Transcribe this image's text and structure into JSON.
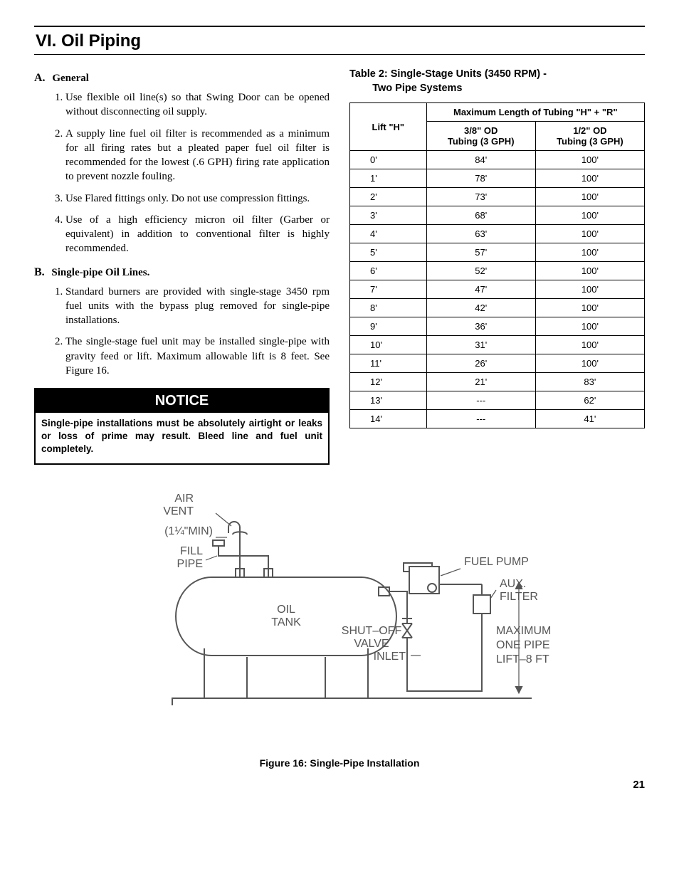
{
  "section_title": "VI.  Oil Piping",
  "left": {
    "A": {
      "label": "A.",
      "title": "General",
      "items": [
        "Use flexible oil line(s) so that Swing Door can be opened without disconnecting oil supply.",
        "A supply line fuel oil filter is recommended as a minimum for all firing rates but a pleated paper fuel oil filter is recommended for the lowest (.6 GPH) firing rate application to prevent nozzle fouling.",
        "Use Flared fittings only.  Do not use compression fittings.",
        "Use of a high efficiency micron oil filter (Garber or equivalent) in addition to conventional filter is highly recommended."
      ]
    },
    "B": {
      "label": "B.",
      "title": "Single-pipe Oil Lines.",
      "items": [
        "Standard burners are provided with single-stage 3450 rpm fuel units with the bypass plug removed for single-pipe installations.",
        "The single-stage fuel unit may be installed single-pipe with gravity feed or lift.  Maximum allowable lift is 8 feet.  See Figure 16."
      ]
    },
    "notice": {
      "head": "NOTICE",
      "body": "Single-pipe installations must be absolutely airtight or leaks or loss of prime may result.  Bleed line and fuel unit completely."
    }
  },
  "table": {
    "caption_l1": "Table 2:  Single-Stage Units (3450 RPM) -",
    "caption_l2": "Two Pipe Systems",
    "head_lift": "Lift \"H\"",
    "head_span": "Maximum Length of Tubing \"H\" + \"R\"",
    "head_c1a": "3/8\" OD",
    "head_c1b": "Tubing (3 GPH)",
    "head_c2a": "1/2\" OD",
    "head_c2b": "Tubing (3 GPH)",
    "rows": [
      {
        "h": "0'",
        "a": "84'",
        "b": "100'"
      },
      {
        "h": "1'",
        "a": "78'",
        "b": "100'"
      },
      {
        "h": "2'",
        "a": "73'",
        "b": "100'"
      },
      {
        "h": "3'",
        "a": "68'",
        "b": "100'"
      },
      {
        "h": "4'",
        "a": "63'",
        "b": "100'"
      },
      {
        "h": "5'",
        "a": "57'",
        "b": "100'"
      },
      {
        "h": "6'",
        "a": "52'",
        "b": "100'"
      },
      {
        "h": "7'",
        "a": "47'",
        "b": "100'"
      },
      {
        "h": "8'",
        "a": "42'",
        "b": "100'"
      },
      {
        "h": "9'",
        "a": "36'",
        "b": "100'"
      },
      {
        "h": "10'",
        "a": "31'",
        "b": "100'"
      },
      {
        "h": "11'",
        "a": "26'",
        "b": "100'"
      },
      {
        "h": "12'",
        "a": "21'",
        "b": "83'"
      },
      {
        "h": "13'",
        "a": "---",
        "b": "62'"
      },
      {
        "h": "14'",
        "a": "---",
        "b": "41'"
      }
    ]
  },
  "figure": {
    "caption": "Figure 16:  Single-Pipe Installation",
    "labels": {
      "air_vent_1": "AIR",
      "air_vent_2": "VENT",
      "min": "(1¼\"MIN)",
      "fill_1": "FILL",
      "fill_2": "PIPE",
      "oil_1": "OIL",
      "oil_2": "TANK",
      "fuel_pump": "FUEL  PUMP",
      "aux_1": "AUX.",
      "aux_2": "FILTER",
      "shut_1": "SHUT–OFF",
      "shut_2": "VALVE",
      "inlet": "INLET",
      "max_1": "MAXIMUM",
      "max_2": "ONE PIPE",
      "max_3": "LIFT–8 FT"
    }
  },
  "page_number": "21"
}
